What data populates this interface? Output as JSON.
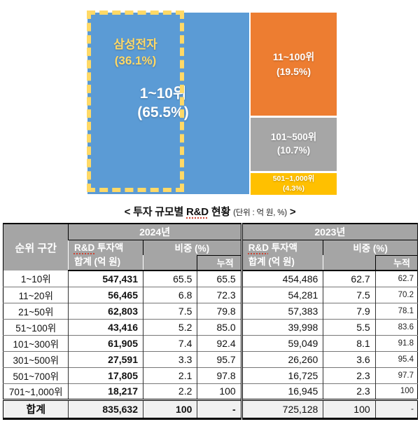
{
  "colors": {
    "rank1_blue": "#5B9BD5",
    "rank11_orange": "#ED7D31",
    "rank101_gray": "#A6A6A6",
    "rank501_yellow": "#FFC000",
    "samsung_dash_gold": "#FFD966",
    "header_gray": "#A5A5A5",
    "total_row_bg": "#F1F1F1"
  },
  "treemap": {
    "samsung": {
      "line1": "삼성전자",
      "line2": "(36.1%)"
    },
    "rank1_10": {
      "line1": "1~10위",
      "line2": "(65.5%)"
    },
    "rank11_100": {
      "line1": "11~100위",
      "line2": "(19.5%)"
    },
    "rank101_500": {
      "line1": "101~500위",
      "line2": "(10.7%)"
    },
    "rank501_1000": {
      "line1": "501~1,000위",
      "line2": "(4.3%)"
    }
  },
  "title": {
    "open": "<",
    "part1": "투자 규모별",
    "rd": "R&D",
    "part2": "현황",
    "unit": "(단위 : 억 원, %)",
    "close": ">"
  },
  "table": {
    "header": {
      "rank_col": "순위 구간",
      "y2024": "2024년",
      "y2023": "2023년",
      "rd": "R&D",
      "rd_rest": "투자액",
      "rd_line2": "합계 (억 원)",
      "share": "비중 (%)",
      "cum": "누적"
    },
    "rows": [
      {
        "rank": "1~10위",
        "v2024": "547,431",
        "s2024": "65.5",
        "c2024": "65.5",
        "v2023": "454,486",
        "s2023": "62.7",
        "c2023": "62.7"
      },
      {
        "rank": "11~20위",
        "v2024": "56,465",
        "s2024": "6.8",
        "c2024": "72.3",
        "v2023": "54,281",
        "s2023": "7.5",
        "c2023": "70.2"
      },
      {
        "rank": "21~50위",
        "v2024": "62,803",
        "s2024": "7.5",
        "c2024": "79.8",
        "v2023": "57,383",
        "s2023": "7.9",
        "c2023": "78.1"
      },
      {
        "rank": "51~100위",
        "v2024": "43,416",
        "s2024": "5.2",
        "c2024": "85.0",
        "v2023": "39,998",
        "s2023": "5.5",
        "c2023": "83.6"
      },
      {
        "rank": "101~300위",
        "v2024": "61,905",
        "s2024": "7.4",
        "c2024": "92.4",
        "v2023": "59,049",
        "s2023": "8.1",
        "c2023": "91.8"
      },
      {
        "rank": "301~500위",
        "v2024": "27,591",
        "s2024": "3.3",
        "c2024": "95.7",
        "v2023": "26,260",
        "s2023": "3.6",
        "c2023": "95.4"
      },
      {
        "rank": "501~700위",
        "v2024": "17,805",
        "s2024": "2.1",
        "c2024": "97.8",
        "v2023": "16,725",
        "s2023": "2.3",
        "c2023": "97.7"
      },
      {
        "rank": "701~1,000위",
        "v2024": "18,217",
        "s2024": "2.2",
        "c2024": "100",
        "v2023": "16,945",
        "s2023": "2.3",
        "c2023": "100"
      }
    ],
    "total": {
      "rank": "합계",
      "v2024": "835,632",
      "s2024": "100",
      "c2024": "-",
      "v2023": "725,128",
      "s2023": "100",
      "c2023": "-"
    }
  },
  "chart_data": [
    {
      "type": "treemap",
      "title": "< 투자 규모별 R&D 현황 (단위 : 억 원, %) >",
      "unit": "억 원, %",
      "segments": [
        {
          "label": "1~10위",
          "share_pct": 65.5,
          "color": "#5B9BD5",
          "sub_segment": {
            "label": "삼성전자",
            "share_pct": 36.1,
            "style": "dashed-gold-outline",
            "outline_color": "#FFD966"
          }
        },
        {
          "label": "11~100위",
          "share_pct": 19.5,
          "color": "#ED7D31"
        },
        {
          "label": "101~500위",
          "share_pct": 10.7,
          "color": "#A6A6A6"
        },
        {
          "label": "501~1,000위",
          "share_pct": 4.3,
          "color": "#FFC000"
        }
      ]
    },
    {
      "type": "table",
      "columns": [
        "순위 구간",
        "2024년 R&D 투자액 합계 (억 원)",
        "2024년 비중 (%)",
        "2024년 누적",
        "2023년 R&D 투자액 합계 (억 원)",
        "2023년 비중 (%)",
        "2023년 누적"
      ],
      "rows": [
        [
          "1~10위",
          547431,
          65.5,
          65.5,
          454486,
          62.7,
          62.7
        ],
        [
          "11~20위",
          56465,
          6.8,
          72.3,
          54281,
          7.5,
          70.2
        ],
        [
          "21~50위",
          62803,
          7.5,
          79.8,
          57383,
          7.9,
          78.1
        ],
        [
          "51~100위",
          43416,
          5.2,
          85.0,
          39998,
          5.5,
          83.6
        ],
        [
          "101~300위",
          61905,
          7.4,
          92.4,
          59049,
          8.1,
          91.8
        ],
        [
          "301~500위",
          27591,
          3.3,
          95.7,
          26260,
          3.6,
          95.4
        ],
        [
          "501~700위",
          17805,
          2.1,
          97.8,
          16725,
          2.3,
          97.7
        ],
        [
          "701~1,000위",
          18217,
          2.2,
          100,
          16945,
          2.3,
          100
        ],
        [
          "합계",
          835632,
          100,
          null,
          725128,
          100,
          null
        ]
      ]
    }
  ]
}
